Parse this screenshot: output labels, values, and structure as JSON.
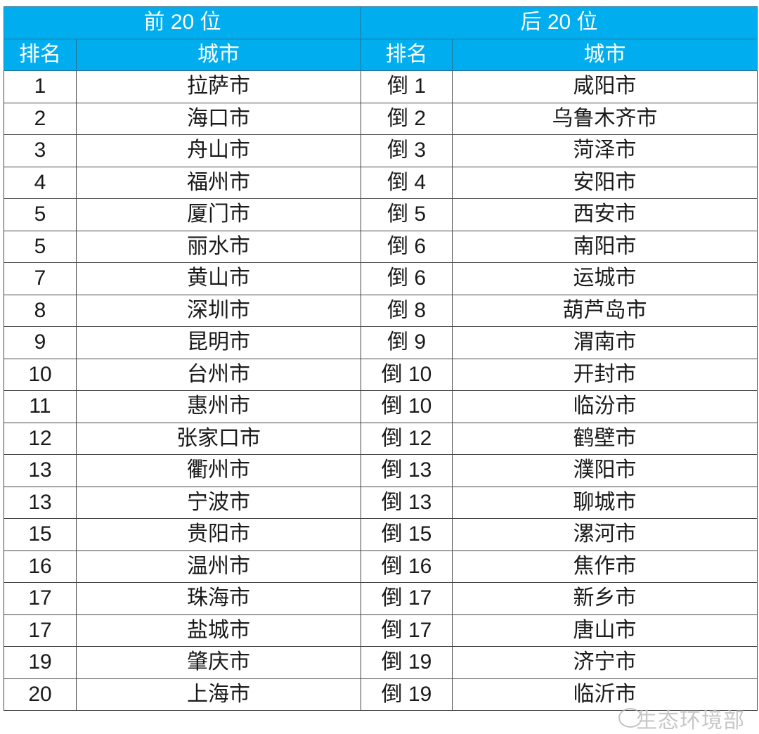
{
  "header": {
    "left_group": "前 20 位",
    "right_group": "后 20 位",
    "rank": "排名",
    "city": "城市"
  },
  "rows": [
    {
      "top_rank": "1",
      "top_city": "拉萨市",
      "bottom_rank": "倒 1",
      "bottom_city": "咸阳市"
    },
    {
      "top_rank": "2",
      "top_city": "海口市",
      "bottom_rank": "倒 2",
      "bottom_city": "乌鲁木齐市"
    },
    {
      "top_rank": "3",
      "top_city": "舟山市",
      "bottom_rank": "倒 3",
      "bottom_city": "菏泽市"
    },
    {
      "top_rank": "4",
      "top_city": "福州市",
      "bottom_rank": "倒 4",
      "bottom_city": "安阳市"
    },
    {
      "top_rank": "5",
      "top_city": "厦门市",
      "bottom_rank": "倒 5",
      "bottom_city": "西安市"
    },
    {
      "top_rank": "5",
      "top_city": "丽水市",
      "bottom_rank": "倒 6",
      "bottom_city": "南阳市"
    },
    {
      "top_rank": "7",
      "top_city": "黄山市",
      "bottom_rank": "倒 6",
      "bottom_city": "运城市"
    },
    {
      "top_rank": "8",
      "top_city": "深圳市",
      "bottom_rank": "倒 8",
      "bottom_city": "葫芦岛市"
    },
    {
      "top_rank": "9",
      "top_city": "昆明市",
      "bottom_rank": "倒 9",
      "bottom_city": "渭南市"
    },
    {
      "top_rank": "10",
      "top_city": "台州市",
      "bottom_rank": "倒 10",
      "bottom_city": "开封市"
    },
    {
      "top_rank": "11",
      "top_city": "惠州市",
      "bottom_rank": "倒 10",
      "bottom_city": "临汾市"
    },
    {
      "top_rank": "12",
      "top_city": "张家口市",
      "bottom_rank": "倒 12",
      "bottom_city": "鹤壁市"
    },
    {
      "top_rank": "13",
      "top_city": "衢州市",
      "bottom_rank": "倒 13",
      "bottom_city": "濮阳市"
    },
    {
      "top_rank": "13",
      "top_city": "宁波市",
      "bottom_rank": "倒 13",
      "bottom_city": "聊城市"
    },
    {
      "top_rank": "15",
      "top_city": "贵阳市",
      "bottom_rank": "倒 15",
      "bottom_city": "漯河市"
    },
    {
      "top_rank": "16",
      "top_city": "温州市",
      "bottom_rank": "倒 16",
      "bottom_city": "焦作市"
    },
    {
      "top_rank": "17",
      "top_city": "珠海市",
      "bottom_rank": "倒 17",
      "bottom_city": "新乡市"
    },
    {
      "top_rank": "17",
      "top_city": "盐城市",
      "bottom_rank": "倒 17",
      "bottom_city": "唐山市"
    },
    {
      "top_rank": "19",
      "top_city": "肇庆市",
      "bottom_rank": "倒 19",
      "bottom_city": "济宁市"
    },
    {
      "top_rank": "20",
      "top_city": "上海市",
      "bottom_rank": "倒 19",
      "bottom_city": "临沂市"
    }
  ],
  "watermark": "生态环境部",
  "colors": {
    "header_bg": "#00aeef",
    "header_text": "#ffffff"
  }
}
